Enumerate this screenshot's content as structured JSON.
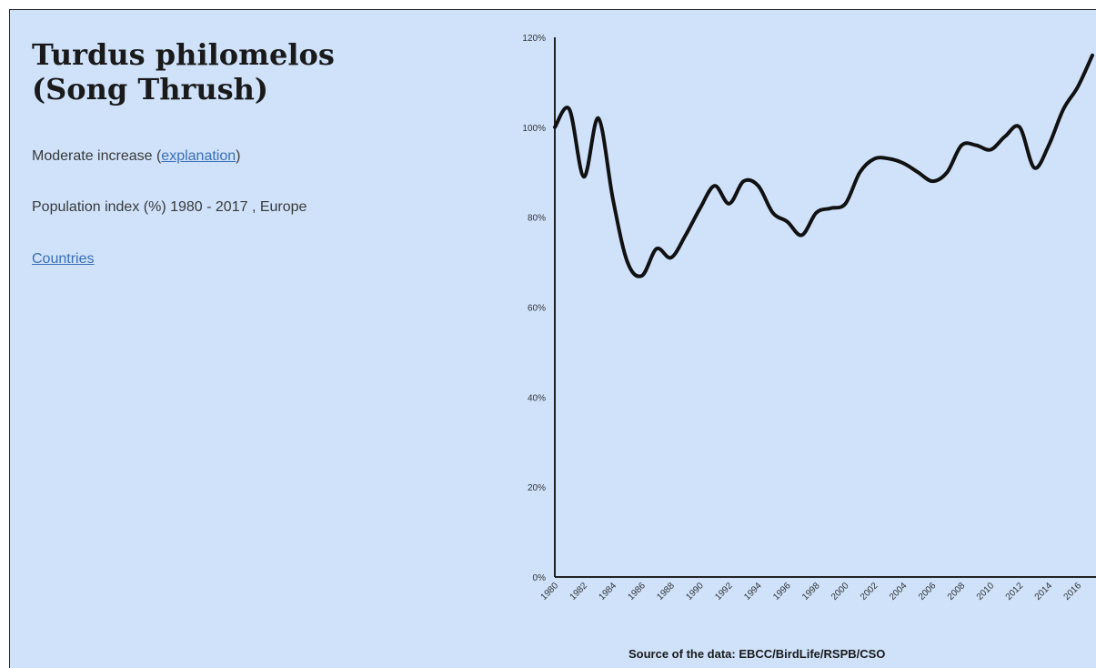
{
  "header": {
    "title_line1": "Turdus philomelos",
    "title_line2": "(Song Thrush)"
  },
  "info": {
    "status_text": "Moderate increase (",
    "explanation_link": "explanation",
    "status_close": ")",
    "index_text": "Population index (%) 1980 - 2017 , Europe",
    "countries_link": "Countries"
  },
  "colors": {
    "background": "#cfe2fa",
    "line": "#111111",
    "link": "#3a6fb5"
  },
  "chart_data": {
    "type": "line",
    "source": "Source of the data: EBCC/BirdLife/RSPB/CSO",
    "ylim": [
      0,
      120
    ],
    "yticks": [
      "0%",
      "20%",
      "40%",
      "60%",
      "80%",
      "100%",
      "120%"
    ],
    "xtick_labels": [
      "1980",
      "1982",
      "1984",
      "1986",
      "1988",
      "1990",
      "1992",
      "1994",
      "1996",
      "1998",
      "2000",
      "2002",
      "2004",
      "2006",
      "2008",
      "2010",
      "2012",
      "2014",
      "2016"
    ],
    "series": [
      {
        "x": [
          1980,
          1981,
          1982,
          1983,
          1984,
          1985,
          1986,
          1987,
          1988,
          1989,
          1990,
          1991,
          1992,
          1993,
          1994,
          1995,
          1996,
          1997,
          1998,
          1999,
          2000,
          2001,
          2002,
          2003,
          2004,
          2005,
          2006,
          2007,
          2008,
          2009,
          2010,
          2011,
          2012,
          2013,
          2014,
          2015,
          2016,
          2017
        ],
        "values": [
          100,
          104,
          89,
          102,
          84,
          70,
          67,
          73,
          71,
          76,
          82,
          87,
          83,
          88,
          87,
          81,
          79,
          76,
          81,
          82,
          83,
          90,
          93,
          93,
          92,
          90,
          88,
          90,
          96,
          96,
          95,
          98,
          100,
          91,
          96,
          104,
          109,
          116
        ]
      }
    ]
  }
}
